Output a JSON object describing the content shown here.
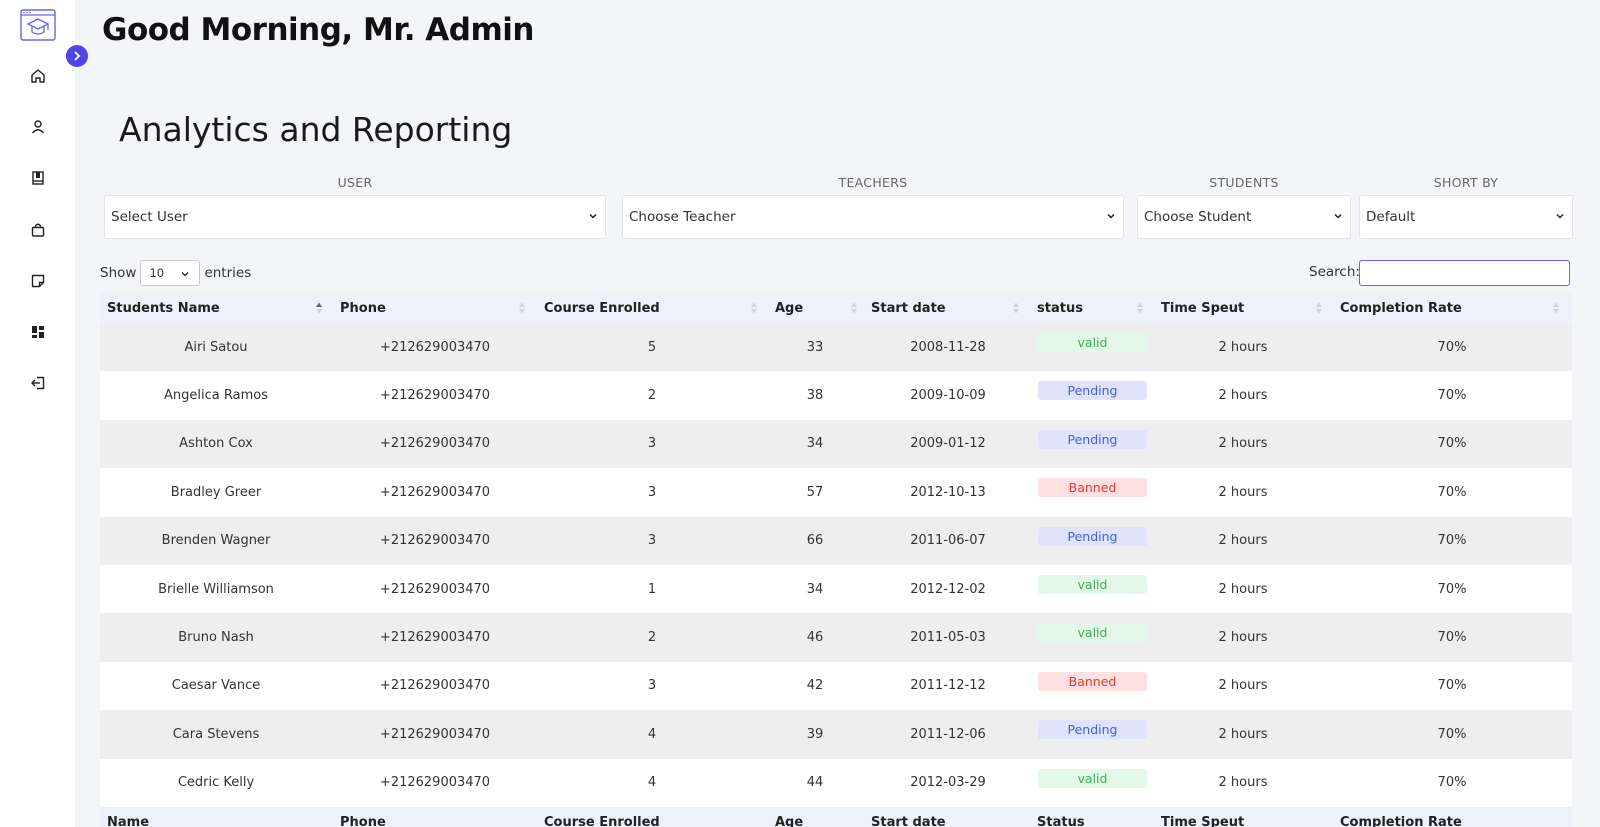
{
  "header": {
    "greeting": "Good Morning, Mr. Admin",
    "section_title": "Analytics and Reporting"
  },
  "sidebar": {
    "icons": [
      "home-icon",
      "user-icon",
      "book-icon",
      "bag-icon",
      "note-icon",
      "dashboard-icon",
      "logout-icon"
    ]
  },
  "filters": {
    "user": {
      "label": "USER",
      "value": "Select User"
    },
    "teachers": {
      "label": "TEACHERS",
      "value": "Choose Teacher"
    },
    "students": {
      "label": "STUDENTS",
      "value": "Choose Student"
    },
    "sort": {
      "label": "SHORT BY",
      "value": "Default"
    }
  },
  "table_controls": {
    "show_label": "Show",
    "entries_value": "10",
    "entries_label": "entries",
    "search_label": "Search:",
    "search_value": ""
  },
  "table": {
    "headers": [
      "Students Name",
      "Phone",
      "Course Enrolled",
      "Age",
      "Start date",
      "status",
      "Time Speut",
      "Completion Rate"
    ],
    "footer": [
      "Name",
      "Phone",
      "Course Enrolled",
      "Age",
      "Start date",
      "Status",
      "Time Speut",
      "Completion Rate"
    ],
    "rows": [
      {
        "name": "Airi Satou",
        "phone": "+212629003470",
        "course": "5",
        "age": "33",
        "start": "2008-11-28",
        "status": "valid",
        "time": "2 hours",
        "rate": "70%"
      },
      {
        "name": "Angelica Ramos",
        "phone": "+212629003470",
        "course": "2",
        "age": "38",
        "start": "2009-10-09",
        "status": "Pending",
        "time": "2 hours",
        "rate": "70%"
      },
      {
        "name": "Ashton Cox",
        "phone": "+212629003470",
        "course": "3",
        "age": "34",
        "start": "2009-01-12",
        "status": "Pending",
        "time": "2 hours",
        "rate": "70%"
      },
      {
        "name": "Bradley Greer",
        "phone": "+212629003470",
        "course": "3",
        "age": "57",
        "start": "2012-10-13",
        "status": "Banned",
        "time": "2 hours",
        "rate": "70%"
      },
      {
        "name": "Brenden Wagner",
        "phone": "+212629003470",
        "course": "3",
        "age": "66",
        "start": "2011-06-07",
        "status": "Pending",
        "time": "2 hours",
        "rate": "70%"
      },
      {
        "name": "Brielle Williamson",
        "phone": "+212629003470",
        "course": "1",
        "age": "34",
        "start": "2012-12-02",
        "status": "valid",
        "time": "2 hours",
        "rate": "70%"
      },
      {
        "name": "Bruno Nash",
        "phone": "+212629003470",
        "course": "2",
        "age": "46",
        "start": "2011-05-03",
        "status": "valid",
        "time": "2 hours",
        "rate": "70%"
      },
      {
        "name": "Caesar Vance",
        "phone": "+212629003470",
        "course": "3",
        "age": "42",
        "start": "2011-12-12",
        "status": "Banned",
        "time": "2 hours",
        "rate": "70%"
      },
      {
        "name": "Cara Stevens",
        "phone": "+212629003470",
        "course": "4",
        "age": "39",
        "start": "2011-12-06",
        "status": "Pending",
        "time": "2 hours",
        "rate": "70%"
      },
      {
        "name": "Cedric Kelly",
        "phone": "+212629003470",
        "course": "4",
        "age": "44",
        "start": "2012-03-29",
        "status": "valid",
        "time": "2 hours",
        "rate": "70%"
      }
    ]
  },
  "colors": {
    "accent": "#4f46e5",
    "valid": "#3cb05a",
    "pending": "#4361d8",
    "banned": "#e53935"
  }
}
